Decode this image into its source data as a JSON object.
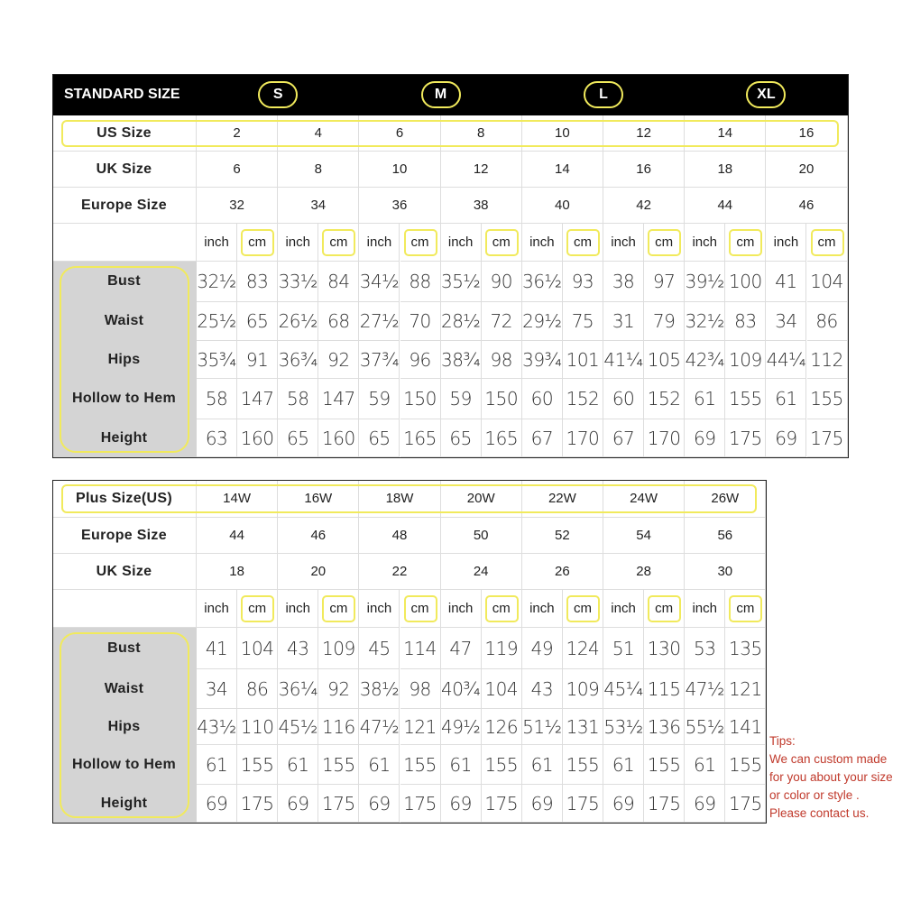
{
  "standard": {
    "title": "STANDARD SIZE",
    "groups": [
      "S",
      "M",
      "L",
      "XL"
    ],
    "rows": [
      {
        "label": "US Size",
        "values": [
          "2",
          "4",
          "6",
          "8",
          "10",
          "12",
          "14",
          "16"
        ]
      },
      {
        "label": "UK Size",
        "values": [
          "6",
          "8",
          "10",
          "12",
          "14",
          "16",
          "18",
          "20"
        ]
      },
      {
        "label": "Europe Size",
        "values": [
          "32",
          "34",
          "36",
          "38",
          "40",
          "42",
          "44",
          "46"
        ]
      }
    ],
    "units": [
      "inch",
      "cm"
    ],
    "measurements": [
      {
        "label": "Bust",
        "values": [
          "32½",
          "83",
          "33½",
          "84",
          "34½",
          "88",
          "35½",
          "90",
          "36½",
          "93",
          "38",
          "97",
          "39½",
          "100",
          "41",
          "104"
        ]
      },
      {
        "label": "Waist",
        "values": [
          "25½",
          "65",
          "26½",
          "68",
          "27½",
          "70",
          "28½",
          "72",
          "29½",
          "75",
          "31",
          "79",
          "32½",
          "83",
          "34",
          "86"
        ]
      },
      {
        "label": "Hips",
        "values": [
          "35¾",
          "91",
          "36¾",
          "92",
          "37¾",
          "96",
          "38¾",
          "98",
          "39¾",
          "101",
          "41¼",
          "105",
          "42¾",
          "109",
          "44¼",
          "112"
        ]
      },
      {
        "label": "Hollow to Hem",
        "values": [
          "58",
          "147",
          "58",
          "147",
          "59",
          "150",
          "59",
          "150",
          "60",
          "152",
          "60",
          "152",
          "61",
          "155",
          "61",
          "155"
        ]
      },
      {
        "label": "Height",
        "values": [
          "63",
          "160",
          "65",
          "160",
          "65",
          "165",
          "65",
          "165",
          "67",
          "170",
          "67",
          "170",
          "69",
          "175",
          "69",
          "175"
        ]
      }
    ]
  },
  "plus": {
    "rows": [
      {
        "label": "Plus Size(US)",
        "values": [
          "14W",
          "16W",
          "18W",
          "20W",
          "22W",
          "24W",
          "26W"
        ]
      },
      {
        "label": "Europe Size",
        "values": [
          "44",
          "46",
          "48",
          "50",
          "52",
          "54",
          "56"
        ]
      },
      {
        "label": "UK Size",
        "values": [
          "18",
          "20",
          "22",
          "24",
          "26",
          "28",
          "30"
        ]
      }
    ],
    "units": [
      "inch",
      "cm"
    ],
    "measurements": [
      {
        "label": "Bust",
        "values": [
          "41",
          "104",
          "43",
          "109",
          "45",
          "114",
          "47",
          "119",
          "49",
          "124",
          "51",
          "130",
          "53",
          "135"
        ]
      },
      {
        "label": "Waist",
        "values": [
          "34",
          "86",
          "36¼",
          "92",
          "38½",
          "98",
          "40¾",
          "104",
          "43",
          "109",
          "45¼",
          "115",
          "47½",
          "121"
        ]
      },
      {
        "label": "Hips",
        "values": [
          "43½",
          "110",
          "45½",
          "116",
          "47½",
          "121",
          "49½",
          "126",
          "51½",
          "131",
          "53½",
          "136",
          "55½",
          "141"
        ]
      },
      {
        "label": "Hollow to Hem",
        "values": [
          "61",
          "155",
          "61",
          "155",
          "61",
          "155",
          "61",
          "155",
          "61",
          "155",
          "61",
          "155",
          "61",
          "155"
        ]
      },
      {
        "label": "Height",
        "values": [
          "69",
          "175",
          "69",
          "175",
          "69",
          "175",
          "69",
          "175",
          "69",
          "175",
          "69",
          "175",
          "69",
          "175"
        ]
      }
    ]
  },
  "tips": [
    "Tips:",
    "We can custom made",
    "for you about your size",
    "or color or style .",
    "Please contact us."
  ],
  "colors": {
    "highlight": "#f1ea5c",
    "tips": "#c0392b",
    "header": "#000000",
    "label_bg": "#d4d4d4"
  }
}
